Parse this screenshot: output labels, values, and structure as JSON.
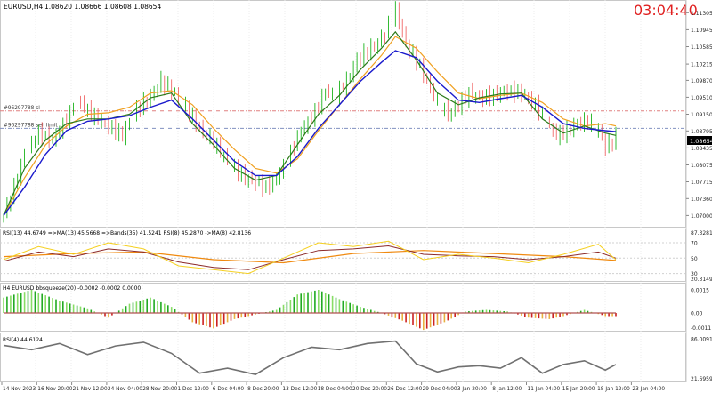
{
  "symbol_line": {
    "symbol": "EURUSD,H4",
    "values": "1.08620 1.08666 1.08608 1.08654"
  },
  "clock": "03:04:40",
  "order_lines": [
    {
      "label": "#96297788 sl",
      "price": 1.0922
    },
    {
      "label": "#96297788 sell limit",
      "price": 1.0885
    }
  ],
  "price_axis": {
    "ticks": [
      "1.11305",
      "1.10945",
      "1.10585",
      "1.10215",
      "1.09870",
      "1.09510",
      "1.09150",
      "1.08795",
      "1.08435",
      "1.08075",
      "1.07715",
      "1.07360",
      "1.07000"
    ],
    "current": "1.08654"
  },
  "rsi_panel": {
    "label": "RSI(13) 44.6749  =>MA(13) 45.5668  =>Bands(35) 41.5241  RSI(8) 45.2870  ->MA(8) 42.8136",
    "ticks": [
      "87.3281",
      "70",
      "50",
      "30",
      "20.3149"
    ]
  },
  "squeeze_panel": {
    "label": "H4 EURUSD bbsqueeze(20) -0.0002 -0.0002 0.0000",
    "ticks": [
      "0.0015",
      "0.00",
      "-0.0011"
    ]
  },
  "rsi4_panel": {
    "label": "RSI(4) 44.6124",
    "ticks": [
      "86.0091",
      "21.6959"
    ]
  },
  "time_axis": [
    "14 Nov 2023",
    "16 Nov 20:00",
    "21 Nov 12:00",
    "24 Nov 04:00",
    "28 Nov 20:00",
    "1 Dec 12:00",
    "6 Dec 04:00",
    "8 Dec 20:00",
    "13 Dec 12:00",
    "18 Dec 04:00",
    "20 Dec 20:00",
    "26 Dec 12:00",
    "29 Dec 04:00",
    "3 Jan 20:00",
    "8 Jan 12:00",
    "11 Jan 04:00",
    "15 Jan 20:00",
    "18 Jan 12:00",
    "23 Jan 04:00"
  ],
  "colors": {
    "bull_candle": "#00aa00",
    "bear_candle": "#ee5555",
    "ma_fast": "#2c7a1a",
    "ma_slow": "#1a1acc",
    "ma_orange": "#f0a020",
    "sl_line": "#e08080",
    "limit_line": "#8090c0",
    "clock": "#e02020"
  },
  "chart_data": {
    "type": "line",
    "price_path": [
      [
        0,
        1.07
      ],
      [
        3,
        1.076
      ],
      [
        6,
        1.083
      ],
      [
        10,
        1.0875
      ],
      [
        14,
        1.086
      ],
      [
        18,
        1.0905
      ],
      [
        21,
        1.0945
      ],
      [
        25,
        1.0915
      ],
      [
        29,
        1.0895
      ],
      [
        34,
        1.087
      ],
      [
        38,
        1.0925
      ],
      [
        42,
        1.0952
      ],
      [
        45,
        1.0985
      ],
      [
        48,
        1.0965
      ],
      [
        52,
        1.093
      ],
      [
        56,
        1.0885
      ],
      [
        60,
        1.0855
      ],
      [
        64,
        1.0815
      ],
      [
        68,
        1.0785
      ],
      [
        72,
        1.077
      ],
      [
        75,
        1.076
      ],
      [
        78,
        1.0778
      ],
      [
        81,
        1.082
      ],
      [
        85,
        1.088
      ],
      [
        89,
        1.092
      ],
      [
        92,
        1.0965
      ],
      [
        95,
        1.0955
      ],
      [
        98,
        1.0985
      ],
      [
        101,
        1.103
      ],
      [
        104,
        1.105
      ],
      [
        107,
        1.1065
      ],
      [
        110,
        1.11
      ],
      [
        112,
        1.1135
      ],
      [
        115,
        1.1065
      ],
      [
        118,
        1.103
      ],
      [
        121,
        1.0985
      ],
      [
        124,
        1.094
      ],
      [
        127,
        1.0915
      ],
      [
        130,
        1.0935
      ],
      [
        133,
        1.096
      ],
      [
        136,
        1.095
      ],
      [
        140,
        1.0955
      ],
      [
        144,
        1.0965
      ],
      [
        148,
        1.096
      ],
      [
        152,
        1.0935
      ],
      [
        155,
        1.09
      ],
      [
        158,
        1.087
      ],
      [
        161,
        1.088
      ],
      [
        164,
        1.0895
      ],
      [
        167,
        1.09
      ],
      [
        170,
        1.088
      ],
      [
        172,
        1.0845
      ],
      [
        175,
        1.0865
      ]
    ],
    "ma_fast_path": [
      [
        0,
        1.07
      ],
      [
        6,
        1.08
      ],
      [
        12,
        1.086
      ],
      [
        18,
        1.0895
      ],
      [
        24,
        1.0905
      ],
      [
        30,
        1.0905
      ],
      [
        36,
        1.0915
      ],
      [
        42,
        1.095
      ],
      [
        48,
        1.096
      ],
      [
        54,
        1.0895
      ],
      [
        60,
        1.085
      ],
      [
        66,
        1.08
      ],
      [
        72,
        1.0775
      ],
      [
        78,
        1.0785
      ],
      [
        84,
        1.085
      ],
      [
        90,
        1.0915
      ],
      [
        96,
        1.0955
      ],
      [
        102,
        1.101
      ],
      [
        108,
        1.1055
      ],
      [
        112,
        1.109
      ],
      [
        118,
        1.103
      ],
      [
        124,
        1.096
      ],
      [
        130,
        1.0935
      ],
      [
        136,
        1.095
      ],
      [
        142,
        1.0958
      ],
      [
        148,
        1.096
      ],
      [
        154,
        1.0905
      ],
      [
        160,
        1.0875
      ],
      [
        166,
        1.089
      ],
      [
        172,
        1.0875
      ],
      [
        175,
        1.087
      ]
    ],
    "ma_slow_path": [
      [
        0,
        1.07
      ],
      [
        6,
        1.076
      ],
      [
        12,
        1.083
      ],
      [
        18,
        1.088
      ],
      [
        24,
        1.09
      ],
      [
        30,
        1.0905
      ],
      [
        36,
        1.0912
      ],
      [
        42,
        1.093
      ],
      [
        48,
        1.0945
      ],
      [
        54,
        1.0905
      ],
      [
        60,
        1.086
      ],
      [
        66,
        1.0815
      ],
      [
        72,
        1.0785
      ],
      [
        78,
        1.0785
      ],
      [
        84,
        1.0825
      ],
      [
        90,
        1.0885
      ],
      [
        96,
        1.0935
      ],
      [
        102,
        1.0985
      ],
      [
        108,
        1.1025
      ],
      [
        112,
        1.105
      ],
      [
        118,
        1.1035
      ],
      [
        124,
        1.0985
      ],
      [
        130,
        1.0945
      ],
      [
        136,
        1.094
      ],
      [
        142,
        1.0948
      ],
      [
        148,
        1.0955
      ],
      [
        154,
        1.093
      ],
      [
        160,
        1.0895
      ],
      [
        166,
        1.0885
      ],
      [
        172,
        1.088
      ],
      [
        175,
        1.0878
      ]
    ],
    "ma_orange_path": [
      [
        0,
        1.07
      ],
      [
        6,
        1.078
      ],
      [
        12,
        1.085
      ],
      [
        18,
        1.089
      ],
      [
        24,
        1.0915
      ],
      [
        30,
        1.0918
      ],
      [
        36,
        1.093
      ],
      [
        42,
        1.096
      ],
      [
        48,
        1.0965
      ],
      [
        54,
        1.0935
      ],
      [
        60,
        1.0885
      ],
      [
        66,
        1.084
      ],
      [
        72,
        1.08
      ],
      [
        78,
        1.079
      ],
      [
        84,
        1.082
      ],
      [
        90,
        1.088
      ],
      [
        96,
        1.0935
      ],
      [
        102,
        1.099
      ],
      [
        108,
        1.104
      ],
      [
        112,
        1.108
      ],
      [
        118,
        1.1055
      ],
      [
        124,
        1.1005
      ],
      [
        130,
        1.096
      ],
      [
        136,
        1.0948
      ],
      [
        142,
        1.0955
      ],
      [
        148,
        1.096
      ],
      [
        154,
        1.094
      ],
      [
        160,
        1.0905
      ],
      [
        166,
        1.089
      ],
      [
        172,
        1.0895
      ],
      [
        175,
        1.089
      ]
    ],
    "rsi_lines": {
      "yellow": [
        [
          0,
          48
        ],
        [
          10,
          65
        ],
        [
          20,
          55
        ],
        [
          30,
          70
        ],
        [
          40,
          62
        ],
        [
          50,
          40
        ],
        [
          60,
          35
        ],
        [
          70,
          30
        ],
        [
          80,
          50
        ],
        [
          90,
          70
        ],
        [
          100,
          65
        ],
        [
          110,
          72
        ],
        [
          120,
          48
        ],
        [
          130,
          55
        ],
        [
          140,
          50
        ],
        [
          150,
          44
        ],
        [
          160,
          55
        ],
        [
          170,
          68
        ],
        [
          175,
          48
        ]
      ],
      "brown": [
        [
          0,
          46
        ],
        [
          10,
          58
        ],
        [
          20,
          52
        ],
        [
          30,
          62
        ],
        [
          40,
          58
        ],
        [
          50,
          45
        ],
        [
          60,
          38
        ],
        [
          70,
          35
        ],
        [
          80,
          48
        ],
        [
          90,
          60
        ],
        [
          100,
          62
        ],
        [
          110,
          66
        ],
        [
          120,
          55
        ],
        [
          130,
          53
        ],
        [
          140,
          52
        ],
        [
          150,
          48
        ],
        [
          160,
          52
        ],
        [
          170,
          58
        ],
        [
          175,
          50
        ]
      ],
      "orange": [
        [
          0,
          52
        ],
        [
          20,
          56
        ],
        [
          40,
          58
        ],
        [
          60,
          48
        ],
        [
          80,
          44
        ],
        [
          100,
          56
        ],
        [
          120,
          60
        ],
        [
          140,
          56
        ],
        [
          160,
          52
        ],
        [
          175,
          47
        ]
      ]
    },
    "squeeze_hist": [
      [
        0,
        0.001
      ],
      [
        8,
        0.0015
      ],
      [
        16,
        0.0008
      ],
      [
        24,
        0.0003
      ],
      [
        30,
        -0.0003
      ],
      [
        36,
        0.0006
      ],
      [
        42,
        0.001
      ],
      [
        48,
        0.0004
      ],
      [
        54,
        -0.0006
      ],
      [
        60,
        -0.001
      ],
      [
        66,
        -0.0004
      ],
      [
        72,
        -0.0001
      ],
      [
        78,
        0.0002
      ],
      [
        84,
        0.0012
      ],
      [
        90,
        0.0015
      ],
      [
        96,
        0.0009
      ],
      [
        102,
        0.0004
      ],
      [
        108,
        0.0
      ],
      [
        114,
        -0.0005
      ],
      [
        120,
        -0.0011
      ],
      [
        126,
        -0.0006
      ],
      [
        132,
        0.0001
      ],
      [
        138,
        0.0002
      ],
      [
        144,
        0.0001
      ],
      [
        150,
        -0.0003
      ],
      [
        156,
        -0.0004
      ],
      [
        160,
        -0.0002
      ],
      [
        166,
        0.0002
      ],
      [
        172,
        -0.0002
      ],
      [
        175,
        -0.0002
      ]
    ],
    "rsi4_path": [
      [
        0,
        75
      ],
      [
        8,
        68
      ],
      [
        16,
        78
      ],
      [
        24,
        60
      ],
      [
        32,
        74
      ],
      [
        40,
        80
      ],
      [
        48,
        62
      ],
      [
        56,
        30
      ],
      [
        64,
        38
      ],
      [
        72,
        28
      ],
      [
        80,
        55
      ],
      [
        88,
        72
      ],
      [
        96,
        68
      ],
      [
        104,
        78
      ],
      [
        112,
        82
      ],
      [
        118,
        45
      ],
      [
        124,
        32
      ],
      [
        130,
        40
      ],
      [
        136,
        42
      ],
      [
        142,
        38
      ],
      [
        148,
        55
      ],
      [
        154,
        30
      ],
      [
        160,
        44
      ],
      [
        166,
        50
      ],
      [
        172,
        35
      ],
      [
        175,
        44
      ]
    ]
  }
}
